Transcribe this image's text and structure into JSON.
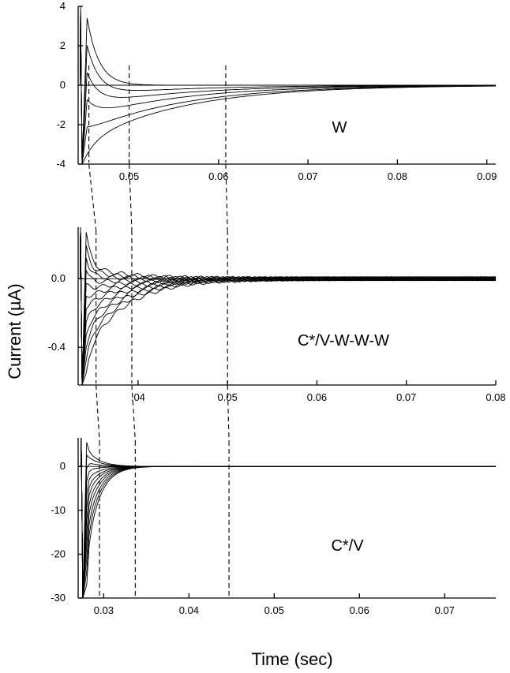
{
  "chart_data": {
    "type": "line",
    "xlabel": "Time (sec)",
    "ylabel": "Current (µA)",
    "panels": [
      {
        "label": "W",
        "xlim": [
          0.0443,
          0.091
        ],
        "ylim": [
          -4,
          4
        ],
        "xticks": [
          0.05,
          0.06,
          0.07,
          0.08,
          0.09
        ],
        "xtick_labels": [
          "0.05",
          "0.06",
          "0.07",
          "0.08",
          "0.09"
        ],
        "yticks": [
          4,
          2,
          0,
          -2,
          -4
        ],
        "ytick_labels": [
          "4",
          "2",
          "0",
          "-2",
          "-4"
        ],
        "pulse_t": 0.0447,
        "peak_t": 0.0453,
        "tau": 0.011,
        "trace_amplitudes": [
          0,
          -0.5,
          -1.0,
          -1.6,
          -2.3,
          -2.8
        ],
        "positive_transient": 3.4,
        "negative_transient": -3.5,
        "dashed_times": [
          0.0455,
          0.05,
          0.0608
        ]
      },
      {
        "label": "C*/V-W-W-W",
        "xlim": [
          0.0333,
          0.08
        ],
        "ylim": [
          -0.62,
          0.3
        ],
        "xticks": [
          0.04,
          0.05,
          0.06,
          0.07,
          0.08
        ],
        "xtick_labels": [
          ".04",
          "0.05",
          "0.06",
          "0.07",
          "0.08"
        ],
        "yticks": [
          0.0,
          -0.4
        ],
        "ytick_labels": [
          "0.0",
          "-0.4"
        ],
        "pulse_t": 0.0337,
        "peak_t": 0.0342,
        "tau": 0.0045,
        "trace_amplitudes": [
          0.07,
          0.04,
          0.01,
          -0.03,
          -0.07,
          -0.11,
          -0.15,
          -0.2,
          -0.25,
          -0.3,
          -0.36,
          -0.42
        ],
        "positive_transient": 0.27,
        "negative_transient": -0.55,
        "dashed_times": [
          0.0353,
          0.0393,
          0.05
        ]
      },
      {
        "label": "C*/V",
        "xlim": [
          0.027,
          0.076
        ],
        "ylim": [
          -30,
          6.5
        ],
        "xticks": [
          0.03,
          0.04,
          0.05,
          0.06,
          0.07
        ],
        "xtick_labels": [
          "0.03",
          "0.04",
          "0.05",
          "0.06",
          "0.07"
        ],
        "yticks": [
          0,
          -10,
          -20,
          -30
        ],
        "ytick_labels": [
          "0",
          "-10",
          "-20",
          "-30"
        ],
        "pulse_t": 0.0275,
        "peak_t": 0.028,
        "tau": 0.0014,
        "trace_amplitudes": [
          4,
          2.5,
          1,
          -1,
          -3,
          -5,
          -7,
          -9.5,
          -12,
          -15,
          -18,
          -21
        ],
        "positive_transient": 5.5,
        "negative_transient": -27,
        "dashed_times": [
          0.0295,
          0.0337,
          0.0447
        ]
      }
    ]
  }
}
